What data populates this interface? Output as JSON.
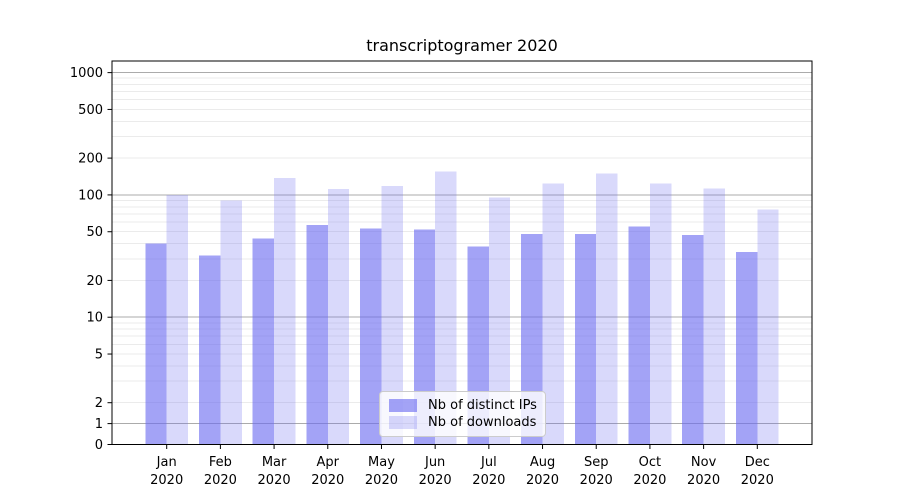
{
  "chart_data": {
    "type": "bar",
    "title": "transcriptogramer 2020",
    "categories": [
      "Jan\n2020",
      "Feb\n2020",
      "Mar\n2020",
      "Apr\n2020",
      "May\n2020",
      "Jun\n2020",
      "Jul\n2020",
      "Aug\n2020",
      "Sep\n2020",
      "Oct\n2020",
      "Nov\n2020",
      "Dec\n2020"
    ],
    "series": [
      {
        "name": "Nb of distinct IPs",
        "color": "rgba(107,107,240,0.62)",
        "values": [
          40,
          32,
          44,
          57,
          53,
          52,
          38,
          48,
          48,
          55,
          47,
          34
        ]
      },
      {
        "name": "Nb of downloads",
        "color": "rgba(107,107,240,0.26)",
        "values": [
          100,
          90,
          137,
          112,
          118,
          155,
          95,
          124,
          149,
          124,
          113,
          76
        ]
      }
    ],
    "y_axis": {
      "scale": "symlog",
      "linthresh": 2,
      "ticks": [
        0,
        1,
        2,
        5,
        10,
        20,
        50,
        100,
        200,
        500,
        1000
      ],
      "major_gridline_values": [
        1,
        10,
        100,
        1000
      ],
      "minor_gridline_values": [
        3,
        4,
        6,
        7,
        8,
        9,
        20,
        30,
        40,
        50,
        60,
        70,
        80,
        90,
        200,
        300,
        400,
        500,
        600,
        700,
        800,
        900
      ],
      "labeled_minor_values": [
        2,
        5,
        20,
        50,
        200,
        500
      ],
      "ylim": [
        0,
        1250
      ]
    },
    "xlabel": "",
    "ylabel": "",
    "grid": true,
    "legend": {
      "position": "lower center"
    }
  },
  "colors": {
    "major_grid": "#ababab",
    "minor_grid": "#ebebeb",
    "spine": "#000000",
    "tick_text": "#000000"
  }
}
